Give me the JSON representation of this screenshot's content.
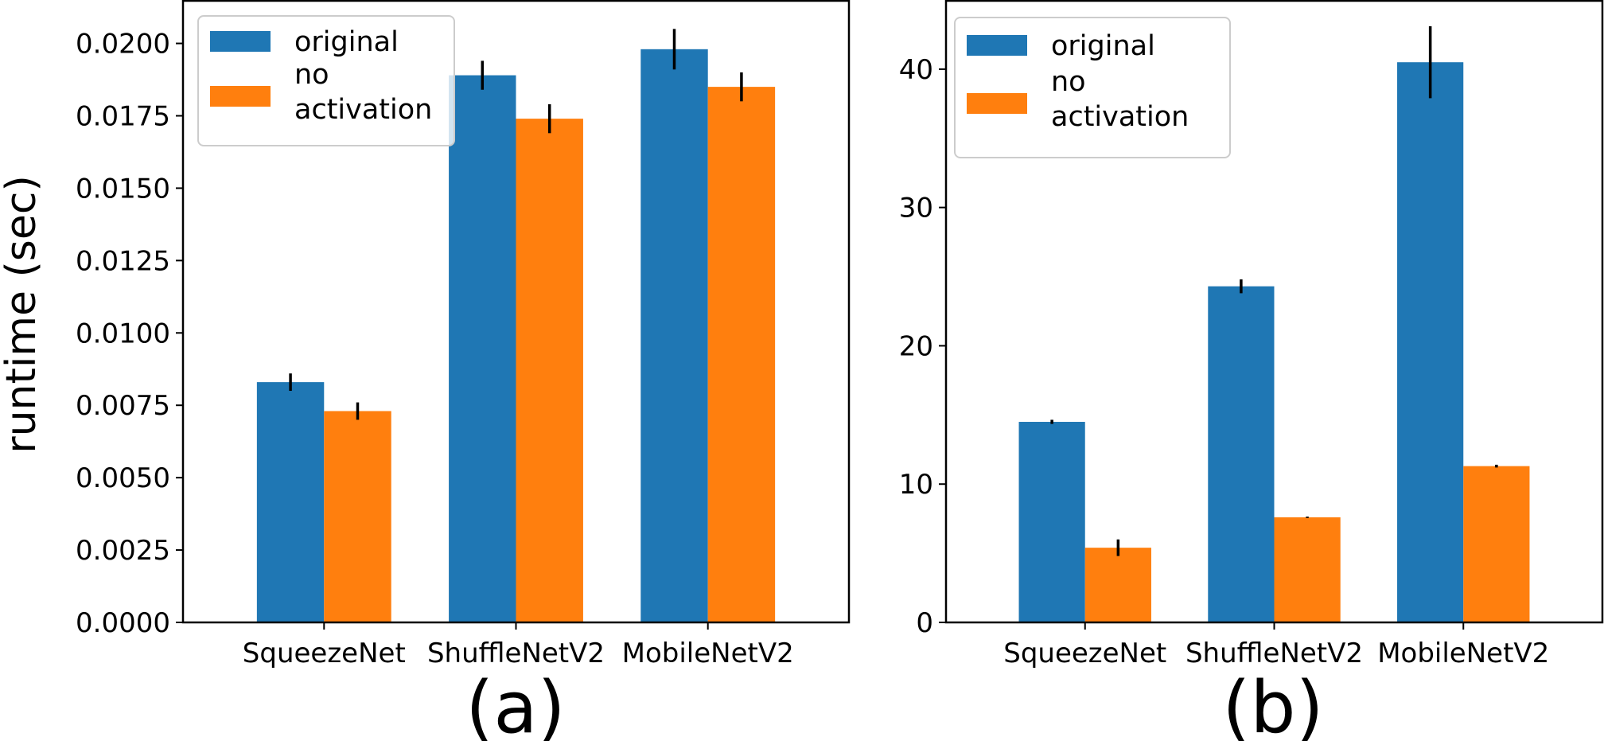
{
  "figure": {
    "ylabel": "runtime (sec)",
    "legend_labels": [
      "original",
      "no\nactivation"
    ]
  },
  "chart_data": [
    {
      "type": "bar",
      "caption": "(a)",
      "categories": [
        "SqueezeNet",
        "ShuffleNetV2",
        "MobileNetV2"
      ],
      "series": [
        {
          "name": "original",
          "color": "#1f77b4",
          "values": [
            0.0083,
            0.0189,
            0.0198
          ],
          "errors": [
            0.0003,
            0.0005,
            0.0007
          ]
        },
        {
          "name": "no activation",
          "color": "#ff7f0e",
          "values": [
            0.0073,
            0.0174,
            0.0185
          ],
          "errors": [
            0.0003,
            0.0005,
            0.0005
          ]
        }
      ],
      "ylabel": "runtime (sec)",
      "ylim": [
        0,
        0.0215
      ],
      "yticks": [
        0.0,
        0.0025,
        0.005,
        0.0075,
        0.01,
        0.0125,
        0.015,
        0.0175,
        0.02
      ],
      "ytick_labels": [
        "0.0000",
        "0.0025",
        "0.0050",
        "0.0075",
        "0.0100",
        "0.0125",
        "0.0150",
        "0.0175",
        "0.0200"
      ],
      "legend_position": "top-left",
      "grid": false
    },
    {
      "type": "bar",
      "caption": "(b)",
      "categories": [
        "SqueezeNet",
        "ShuffleNetV2",
        "MobileNetV2"
      ],
      "series": [
        {
          "name": "original",
          "color": "#1f77b4",
          "values": [
            14.5,
            24.3,
            40.5
          ],
          "errors": [
            0.15,
            0.5,
            2.6
          ]
        },
        {
          "name": "no activation",
          "color": "#ff7f0e",
          "values": [
            5.4,
            7.6,
            11.3
          ],
          "errors": [
            0.6,
            0.05,
            0.1
          ]
        }
      ],
      "ylabel": "",
      "ylim": [
        0,
        45
      ],
      "yticks": [
        0,
        10,
        20,
        30,
        40
      ],
      "ytick_labels": [
        "0",
        "10",
        "20",
        "30",
        "40"
      ],
      "legend_position": "top-left",
      "grid": false
    }
  ]
}
